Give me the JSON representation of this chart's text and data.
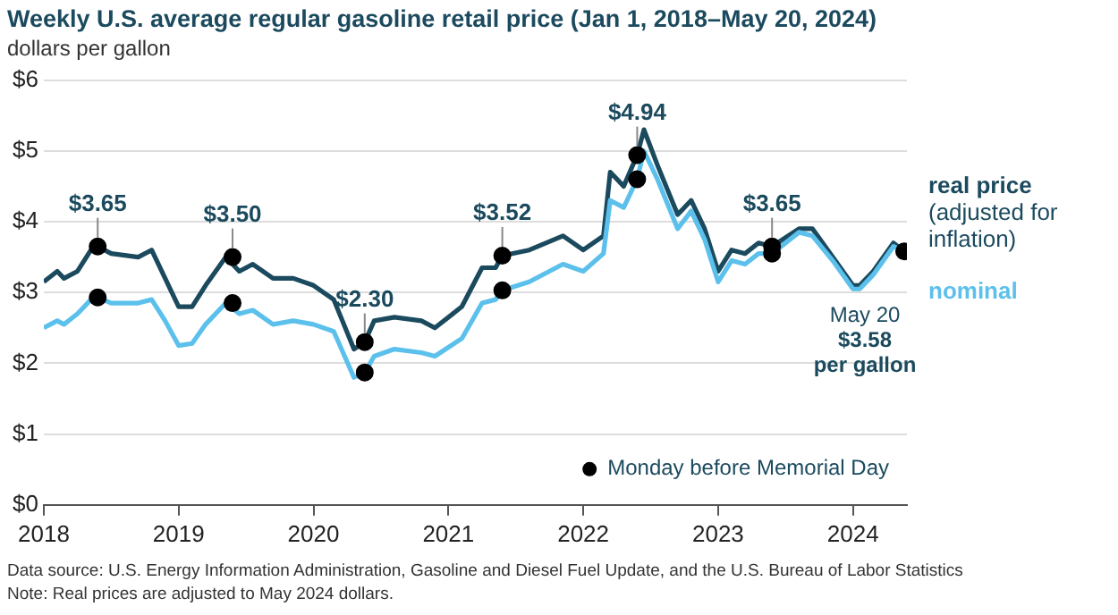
{
  "chart_data": {
    "type": "line",
    "title": "Weekly U.S. average regular gasoline retail price (Jan 1, 2018–May 20, 2024)",
    "subtitle": "dollars per gallon",
    "xlim": [
      2018,
      2024.4
    ],
    "xticks": [
      2018,
      2019,
      2020,
      2021,
      2022,
      2023,
      2024
    ],
    "ylim": [
      0,
      6
    ],
    "yticks": [
      {
        "value": 0,
        "label": "$0"
      },
      {
        "value": 1,
        "label": "$1"
      },
      {
        "value": 2,
        "label": "$2"
      },
      {
        "value": 3,
        "label": "$3"
      },
      {
        "value": 4,
        "label": "$4"
      },
      {
        "value": 5,
        "label": "$5"
      },
      {
        "value": 6,
        "label": "$6"
      }
    ],
    "grid": "y",
    "legend": "bottom right",
    "line_style": "solid",
    "series": [
      {
        "name": "nominal",
        "color": "#5bc0eb",
        "x": [
          2018.0,
          2018.1,
          2018.15,
          2018.25,
          2018.35,
          2018.4,
          2018.5,
          2018.7,
          2018.8,
          2018.9,
          2019.0,
          2019.1,
          2019.2,
          2019.35,
          2019.45,
          2019.55,
          2019.7,
          2019.85,
          2020.0,
          2020.15,
          2020.3,
          2020.38,
          2020.45,
          2020.6,
          2020.8,
          2020.9,
          2021.1,
          2021.25,
          2021.35,
          2021.4,
          2021.6,
          2021.85,
          2022.0,
          2022.15,
          2022.2,
          2022.3,
          2022.4,
          2022.45,
          2022.55,
          2022.7,
          2022.8,
          2022.9,
          2023.0,
          2023.1,
          2023.2,
          2023.3,
          2023.4,
          2023.6,
          2023.7,
          2023.85,
          2024.0,
          2024.05,
          2024.15,
          2024.3,
          2024.38
        ],
        "values": [
          2.5,
          2.6,
          2.55,
          2.7,
          2.9,
          2.93,
          2.85,
          2.85,
          2.9,
          2.6,
          2.25,
          2.28,
          2.55,
          2.85,
          2.7,
          2.75,
          2.55,
          2.6,
          2.55,
          2.45,
          1.8,
          1.87,
          2.1,
          2.2,
          2.15,
          2.1,
          2.35,
          2.85,
          2.9,
          3.03,
          3.15,
          3.4,
          3.3,
          3.55,
          4.3,
          4.2,
          4.6,
          5.0,
          4.6,
          3.9,
          4.15,
          3.75,
          3.15,
          3.45,
          3.4,
          3.55,
          3.55,
          3.85,
          3.8,
          3.45,
          3.05,
          3.05,
          3.25,
          3.65,
          3.58
        ]
      },
      {
        "name": "real price (adjusted for inflation)",
        "color": "#1b4a5e",
        "x": [
          2018.0,
          2018.1,
          2018.15,
          2018.25,
          2018.35,
          2018.4,
          2018.5,
          2018.7,
          2018.8,
          2018.9,
          2019.0,
          2019.1,
          2019.2,
          2019.35,
          2019.45,
          2019.55,
          2019.7,
          2019.85,
          2020.0,
          2020.15,
          2020.3,
          2020.38,
          2020.45,
          2020.6,
          2020.8,
          2020.9,
          2021.1,
          2021.25,
          2021.35,
          2021.4,
          2021.6,
          2021.85,
          2022.0,
          2022.15,
          2022.2,
          2022.3,
          2022.4,
          2022.45,
          2022.55,
          2022.7,
          2022.8,
          2022.9,
          2023.0,
          2023.1,
          2023.2,
          2023.3,
          2023.4,
          2023.6,
          2023.7,
          2023.85,
          2024.0,
          2024.05,
          2024.15,
          2024.3,
          2024.38
        ],
        "values": [
          3.15,
          3.3,
          3.2,
          3.3,
          3.6,
          3.65,
          3.55,
          3.5,
          3.6,
          3.2,
          2.8,
          2.8,
          3.1,
          3.5,
          3.3,
          3.4,
          3.2,
          3.2,
          3.1,
          2.9,
          2.2,
          2.3,
          2.6,
          2.65,
          2.6,
          2.5,
          2.8,
          3.35,
          3.35,
          3.52,
          3.6,
          3.8,
          3.6,
          3.8,
          4.7,
          4.5,
          4.94,
          5.3,
          4.8,
          4.1,
          4.3,
          3.9,
          3.3,
          3.6,
          3.55,
          3.7,
          3.65,
          3.9,
          3.9,
          3.5,
          3.1,
          3.1,
          3.3,
          3.7,
          3.58
        ]
      },
      {
        "type": "scatter",
        "color": "#000000",
        "x": [
          2018.4,
          2019.4,
          2020.38,
          2021.4,
          2022.4,
          2023.4
        ],
        "values": [
          2.93,
          2.85,
          1.87,
          3.03,
          4.6,
          3.55
        ]
      },
      {
        "type": "scatter",
        "name": "Monday before Memorial Day",
        "color": "#000000",
        "x": [
          2018.4,
          2019.4,
          2020.38,
          2021.4,
          2022.4,
          2023.4,
          2024.38
        ],
        "values": [
          3.65,
          3.5,
          2.3,
          3.52,
          4.94,
          3.65,
          3.58
        ],
        "value_labels": [
          "$3.65",
          "$3.50",
          "$2.30",
          "$3.52",
          "$4.94",
          "$3.65",
          null
        ]
      }
    ],
    "annotations": [
      {
        "text": "May 20\n$3.58\nper gallon",
        "x": 2024.38,
        "y": 3.58
      },
      "Data source: U.S. Energy Information Administration, Gasoline and Diesel Fuel Update, and the U.S. Bureau of Labor Statistics",
      "Note: Real prices are adjusted to May 2024 dollars."
    ]
  }
}
